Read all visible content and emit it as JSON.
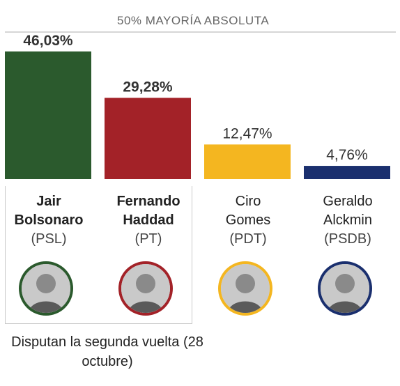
{
  "majority_label": "50% MAYORÍA ABSOLUTA",
  "runoff_caption": "Disputan la segunda vuelta (28 octubre)",
  "chart_data": {
    "type": "bar",
    "majority_line": 50,
    "ylim": [
      0,
      50
    ],
    "categories": [
      "Jair Bolsonaro",
      "Fernando Haddad",
      "Ciro Gomes",
      "Geraldo Alckmin"
    ],
    "values": [
      46.03,
      29.28,
      12.47,
      4.76
    ],
    "value_labels": [
      "46,03%",
      "29,28%",
      "12,47%",
      "4,76%"
    ],
    "colors": [
      "#2b5a2d",
      "#a32228",
      "#f4b620",
      "#1a2f6e"
    ]
  },
  "candidates": [
    {
      "name": "Jair\nBolsonaro",
      "party": "(PSL)",
      "color": "#2b5a2d",
      "bold": true
    },
    {
      "name": "Fernando\nHaddad",
      "party": "(PT)",
      "color": "#a32228",
      "bold": true
    },
    {
      "name": "Ciro\nGomes",
      "party": "(PDT)",
      "color": "#f4b620",
      "bold": false
    },
    {
      "name": "Geraldo\nAlckmin",
      "party": "(PSDB)",
      "color": "#1a2f6e",
      "bold": false
    }
  ]
}
